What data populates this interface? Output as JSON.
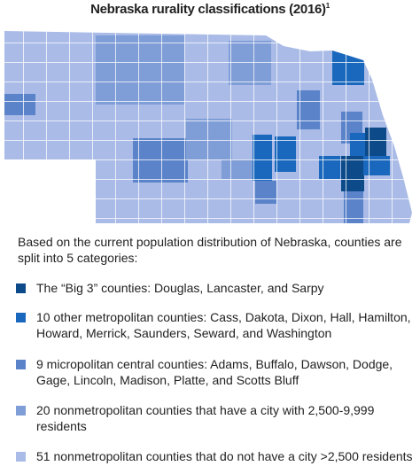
{
  "title": "Nebraska rurality classifications (2016)",
  "title_note": "1",
  "intro": "Based on the current population distribution of Nebraska, counties are split into 5 categories:",
  "legend": [
    {
      "label": "The “Big 3” counties: Douglas, Lancaster, and Sarpy",
      "color": "#0d4a8a"
    },
    {
      "label": "10 other metropolitan counties: Cass, Dakota, Dixon, Hall, Hamilton, Howard, Merrick, Saunders, Seward, and Washington",
      "color": "#1a68bd"
    },
    {
      "label": "9 micropolitan central counties: Adams, Buffalo, Dawson, Dodge, Gage, Lincoln, Madison, Platte, and Scotts Bluff",
      "color": "#5a83c9"
    },
    {
      "label": "20 nonmetropolitan counties that have a city with 2,500-9,999 residents",
      "color": "#7f9dd6"
    },
    {
      "label": "51 nonmetropolitan counties that do not have a city >2,500 residents",
      "color": "#a9bbe6"
    }
  ]
}
